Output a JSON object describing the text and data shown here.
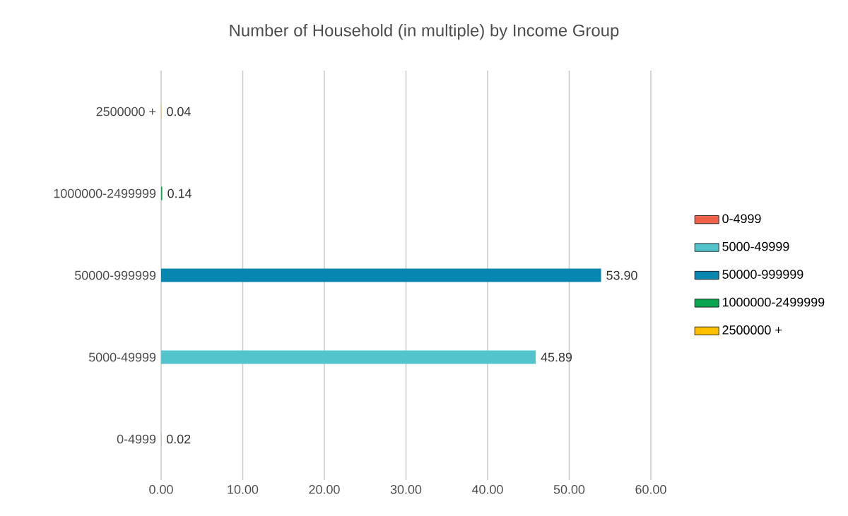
{
  "chart_data": {
    "type": "bar",
    "orientation": "horizontal",
    "title": "Number of Household (in multiple) by Income Group",
    "categories": [
      "2500000 +",
      "1000000-2499999",
      "50000-999999",
      "5000-49999",
      "0-4999"
    ],
    "series": [
      {
        "name": "0-4999",
        "color": "#f0614a",
        "values": [
          null,
          null,
          null,
          null,
          0.02
        ],
        "value_labels": [
          null,
          null,
          null,
          null,
          "0.02"
        ]
      },
      {
        "name": "5000-49999",
        "color": "#53c3cc",
        "values": [
          null,
          null,
          null,
          45.89,
          null
        ],
        "value_labels": [
          null,
          null,
          null,
          "45.89",
          null
        ]
      },
      {
        "name": "50000-999999",
        "color": "#0787b0",
        "values": [
          null,
          null,
          53.9,
          null,
          null
        ],
        "value_labels": [
          null,
          null,
          "53.90",
          null,
          null
        ]
      },
      {
        "name": "1000000-2499999",
        "color": "#0aa64f",
        "values": [
          null,
          0.14,
          null,
          null,
          null
        ],
        "value_labels": [
          null,
          "0.14",
          null,
          null,
          null
        ]
      },
      {
        "name": "2500000 +",
        "color": "#ffc000",
        "values": [
          0.04,
          null,
          null,
          null,
          null
        ],
        "value_labels": [
          "0.04",
          null,
          null,
          null,
          null
        ]
      }
    ],
    "xlim": [
      0,
      60
    ],
    "xticks": [
      {
        "value": 0,
        "label": "0.00"
      },
      {
        "value": 10,
        "label": "10.00"
      },
      {
        "value": 20,
        "label": "20.00"
      },
      {
        "value": 30,
        "label": "30.00"
      },
      {
        "value": 40,
        "label": "40.00"
      },
      {
        "value": 50,
        "label": "50.00"
      },
      {
        "value": 60,
        "label": "60.00"
      }
    ],
    "grid": "x",
    "legend": "right"
  }
}
